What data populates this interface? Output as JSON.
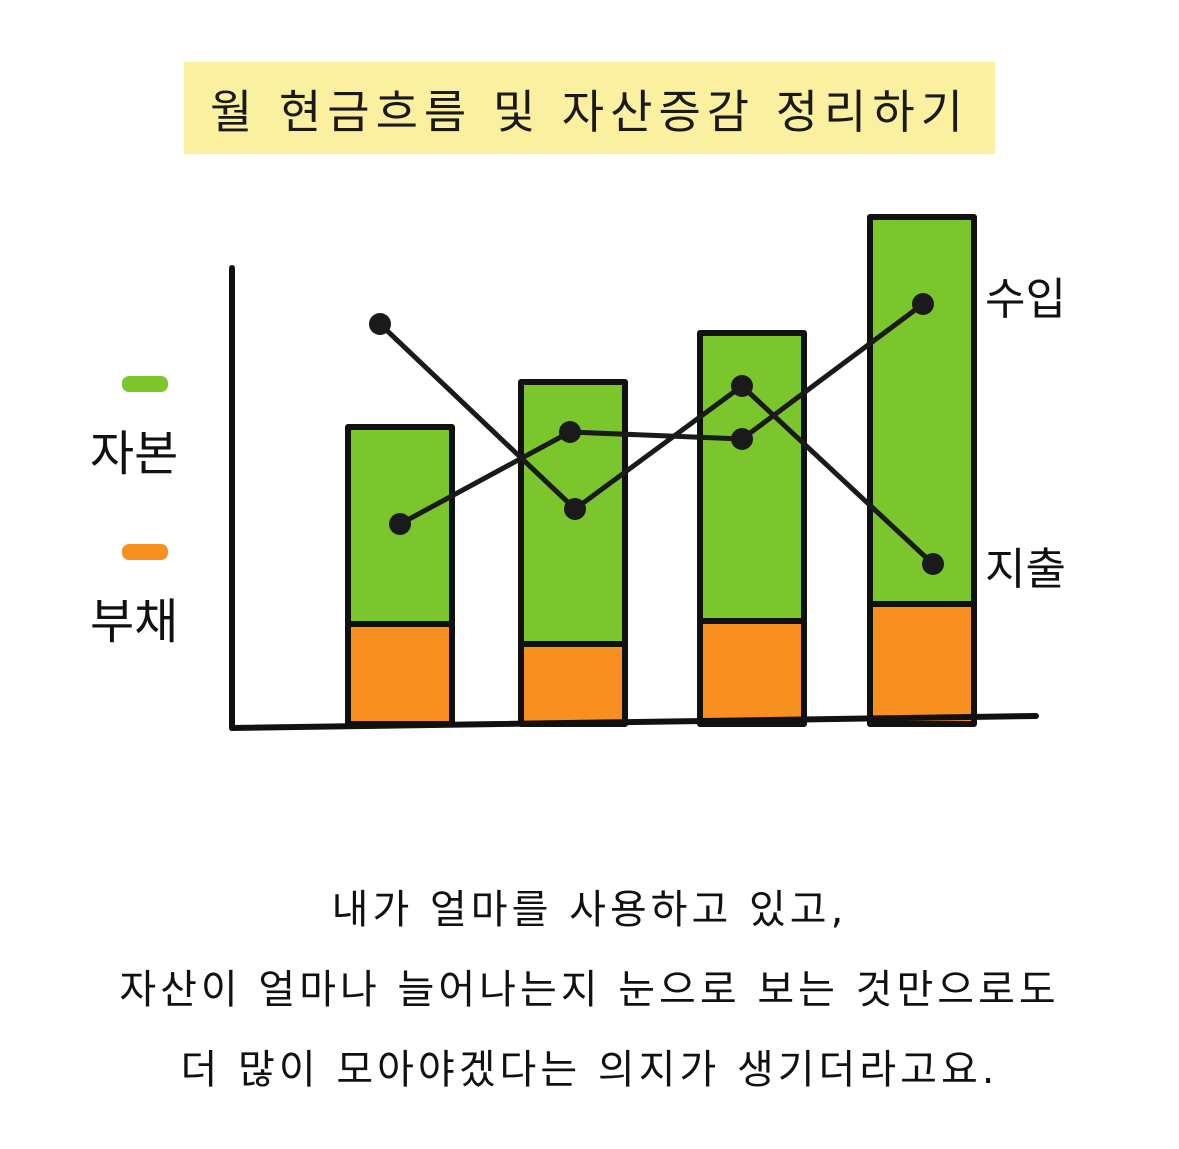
{
  "title": "월 현금흐름 및 자산증감 정리하기",
  "chart_data": {
    "type": "bar",
    "categories": [
      "",
      "",
      "",
      ""
    ],
    "series": [
      {
        "name": "부채",
        "values": [
          100,
          80,
          103,
          120
        ],
        "color": "#f7901e",
        "kind": "bar"
      },
      {
        "name": "자본",
        "values": [
          197,
          262,
          288,
          387
        ],
        "color": "#7cc62d",
        "kind": "bar"
      }
    ],
    "lines": [
      {
        "name": "수입",
        "values": [
          200,
          292,
          285,
          420
        ],
        "kind": "line"
      },
      {
        "name": "지출",
        "values": [
          400,
          215,
          338,
          160
        ],
        "kind": "line"
      }
    ],
    "legend": [
      {
        "name": "자본",
        "color": "#7cc62d"
      },
      {
        "name": "부채",
        "color": "#f7901e"
      }
    ],
    "ylim": [
      0,
      510
    ],
    "stacked": true,
    "grid": false,
    "legend_position": "left"
  },
  "caption": [
    "내가 얼마를 사용하고 있고,",
    "자산이 얼마나 늘어나는지 눈으로 보는 것만으로도",
    "더 많이 모아야겠다는 의지가 생기더라고요."
  ]
}
